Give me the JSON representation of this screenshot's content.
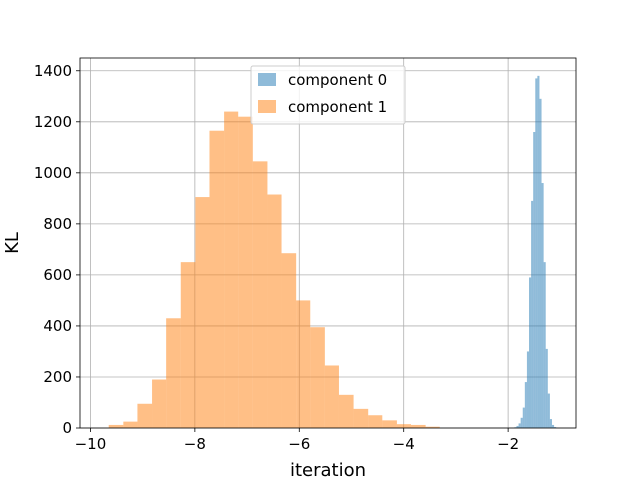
{
  "chart_data": {
    "type": "histogram",
    "title": "",
    "xlabel": "iteration",
    "ylabel": "KL",
    "xlim": [
      -10.2,
      -0.7
    ],
    "ylim": [
      0,
      1450
    ],
    "xticks": [
      -10,
      -8,
      -6,
      -4,
      -2
    ],
    "xtick_labels": [
      "−10",
      "−8",
      "−6",
      "−4",
      "−2"
    ],
    "yticks": [
      0,
      200,
      400,
      600,
      800,
      1000,
      1200,
      1400
    ],
    "ytick_labels": [
      "0",
      "200",
      "400",
      "600",
      "800",
      "1000",
      "1200",
      "1400"
    ],
    "grid": true,
    "legend_position": "top-center",
    "series": [
      {
        "name": "component 0",
        "color": "#1f77b4",
        "alpha": 0.5,
        "bin_edges": [
          -1.88,
          -1.84,
          -1.8,
          -1.76,
          -1.72,
          -1.68,
          -1.64,
          -1.6,
          -1.56,
          -1.52,
          -1.48,
          -1.44,
          -1.4,
          -1.36,
          -1.32,
          -1.28,
          -1.24,
          -1.2,
          -1.16,
          -1.12,
          -1.08,
          -1.04
        ],
        "counts": [
          3,
          8,
          18,
          40,
          80,
          180,
          300,
          590,
          890,
          1160,
          1370,
          1380,
          1290,
          960,
          650,
          310,
          135,
          35,
          12,
          4,
          1
        ]
      },
      {
        "name": "component 1",
        "color": "#ff7f0e",
        "alpha": 0.5,
        "bin_edges": [
          -9.65,
          -9.37,
          -9.1,
          -8.82,
          -8.55,
          -8.27,
          -7.99,
          -7.72,
          -7.44,
          -7.17,
          -6.89,
          -6.61,
          -6.34,
          -6.06,
          -5.79,
          -5.51,
          -5.24,
          -4.96,
          -4.68,
          -4.41,
          -4.13,
          -3.86,
          -3.58,
          -3.31
        ],
        "counts": [
          12,
          25,
          95,
          190,
          430,
          650,
          905,
          1165,
          1240,
          1220,
          1045,
          915,
          685,
          500,
          395,
          245,
          130,
          75,
          50,
          30,
          15,
          12,
          5
        ]
      }
    ]
  }
}
